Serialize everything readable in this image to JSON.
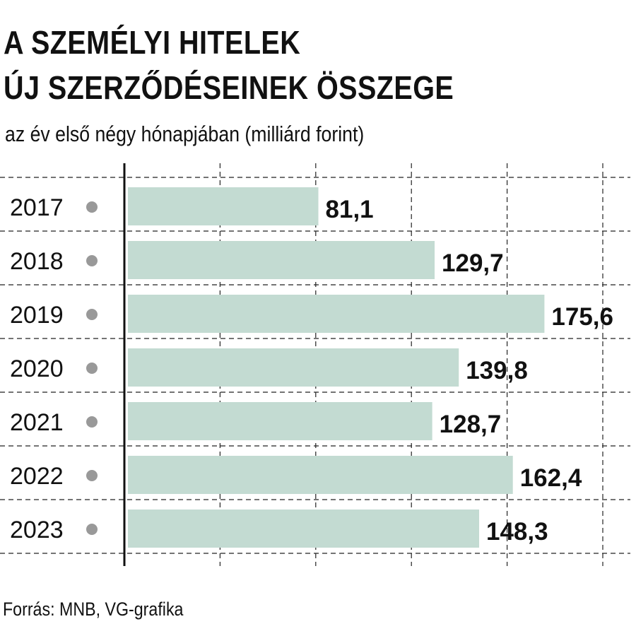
{
  "title_lines": [
    "A SZEMÉLYI HITELEK",
    "ÚJ SZERZŐDÉSEINEK ÖSSZEGE"
  ],
  "subtitle": "az év első négy hónapjában (milliárd forint)",
  "source": "Forrás: MNB, VG-grafika",
  "colors": {
    "bar": "#c3dbd2",
    "dot": "#999999",
    "axis": "#111111",
    "grid": "#222222",
    "text": "#111111"
  },
  "chart_data": {
    "type": "bar",
    "orientation": "horizontal",
    "categories": [
      "2017",
      "2018",
      "2019",
      "2020",
      "2021",
      "2022",
      "2023"
    ],
    "values": [
      81.1,
      129.7,
      175.6,
      139.8,
      128.7,
      162.4,
      148.3
    ],
    "value_labels": [
      "81,1",
      "129,7",
      "175,6",
      "139,8",
      "128,7",
      "162,4",
      "148,3"
    ],
    "xlim": [
      0,
      200
    ],
    "grid": "dashed",
    "legend": "none"
  }
}
